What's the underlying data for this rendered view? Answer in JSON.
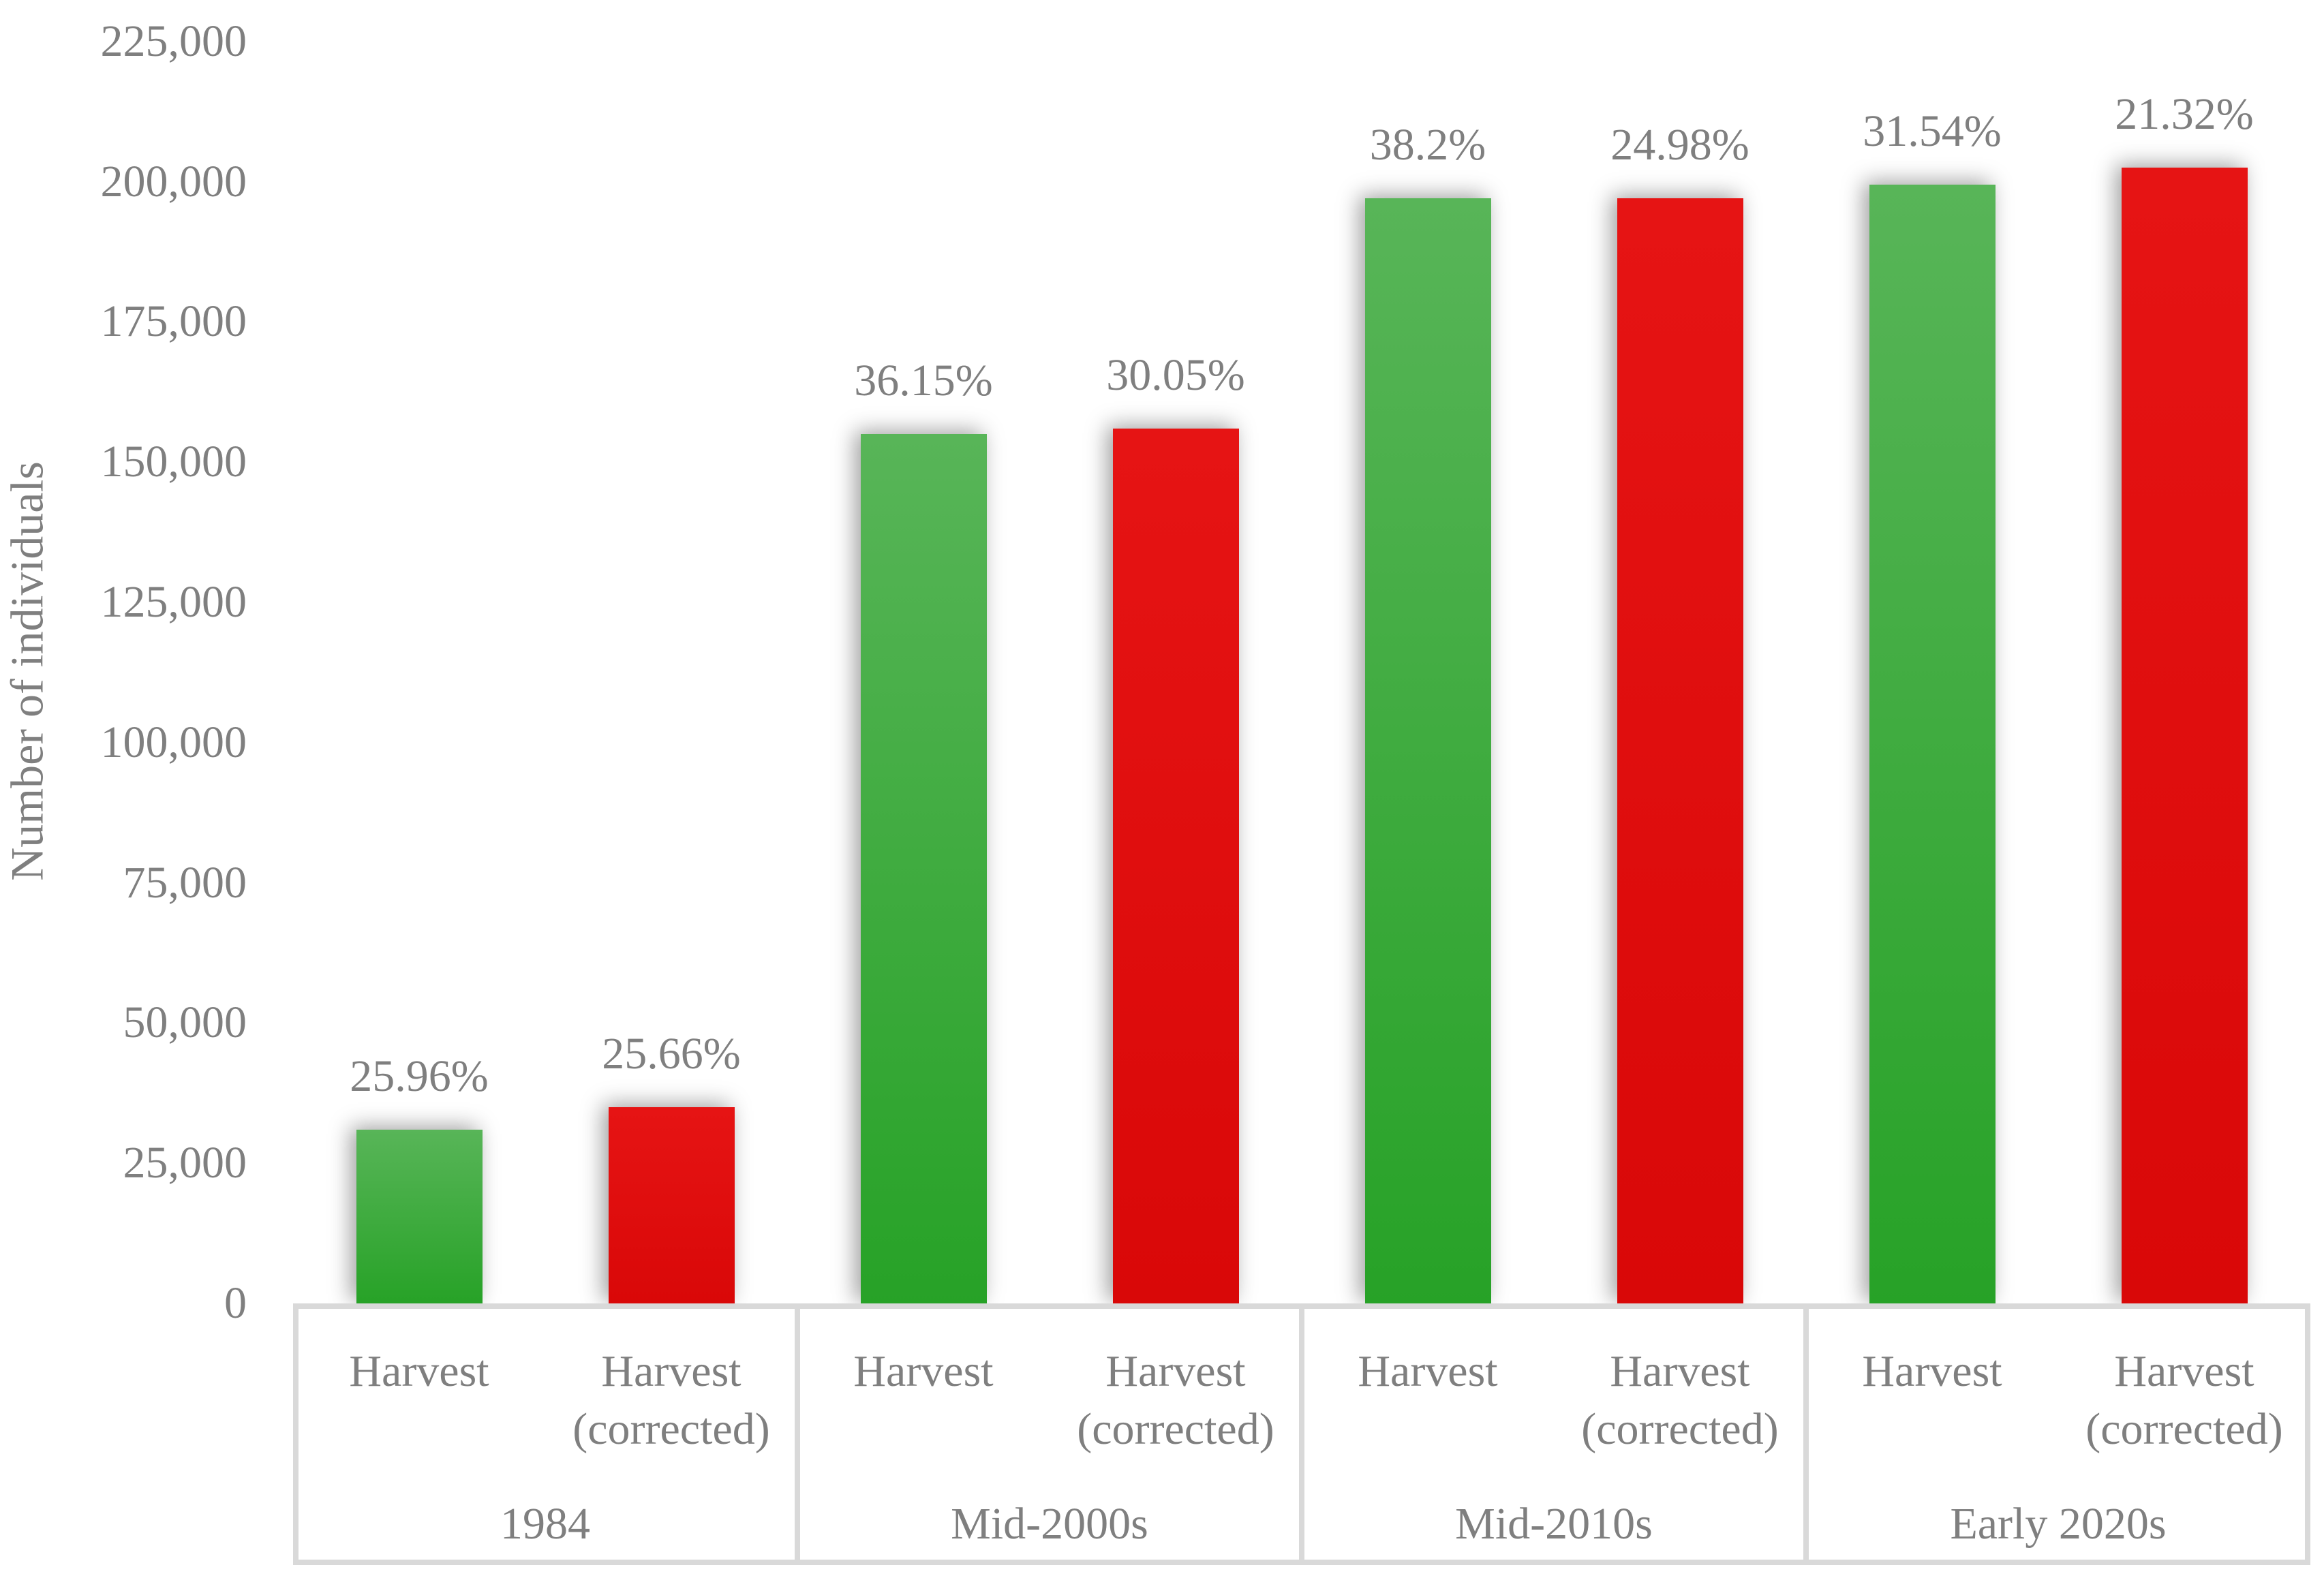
{
  "colors": {
    "text_gray": "#7f7f7f",
    "axis_border_gray": "#d9d9d9",
    "background": "#ffffff",
    "harvest_green_top": "#58b558",
    "harvest_green_bottom": "#27a227",
    "corrected_red_top": "#e61414",
    "corrected_red_bottom": "#d90808"
  },
  "chart_data": {
    "type": "bar",
    "title": "",
    "xlabel": "",
    "ylabel": "Number of individuals",
    "grid": false,
    "legend_position": "none",
    "ylim": [
      0,
      225000
    ],
    "y_tick_unit": 25000,
    "categories": [
      "1984",
      "Mid-2000s",
      "Mid-2010s",
      "Early 2020s"
    ],
    "series": [
      {
        "name": "Harvest",
        "axis_label_lines": [
          "Harvest"
        ],
        "values": [
          31000,
          155000,
          197000,
          199500
        ],
        "data_labels": [
          "25.96%",
          "36.15%",
          "38.2%",
          "31.54%"
        ],
        "fill_top": "#58b558",
        "fill_bottom": "#27a227"
      },
      {
        "name": "Harvest (corrected)",
        "axis_label_lines": [
          "Harvest",
          "(corrected)"
        ],
        "values": [
          35000,
          156000,
          197000,
          202500
        ],
        "data_labels": [
          "25.66%",
          "30.05%",
          "24.98%",
          "21.32%"
        ],
        "fill_top": "#e61414",
        "fill_bottom": "#d90808"
      }
    ],
    "y_ticks": [
      {
        "label": "0",
        "value": 0
      },
      {
        "label": "25,000",
        "value": 25000
      },
      {
        "label": "50,000",
        "value": 50000
      },
      {
        "label": "75,000",
        "value": 75000
      },
      {
        "label": "100,000",
        "value": 100000
      },
      {
        "label": "125,000",
        "value": 125000
      },
      {
        "label": "150,000",
        "value": 150000
      },
      {
        "label": "175,000",
        "value": 175000
      },
      {
        "label": "200,000",
        "value": 200000
      },
      {
        "label": "225,000",
        "value": 225000
      }
    ]
  }
}
